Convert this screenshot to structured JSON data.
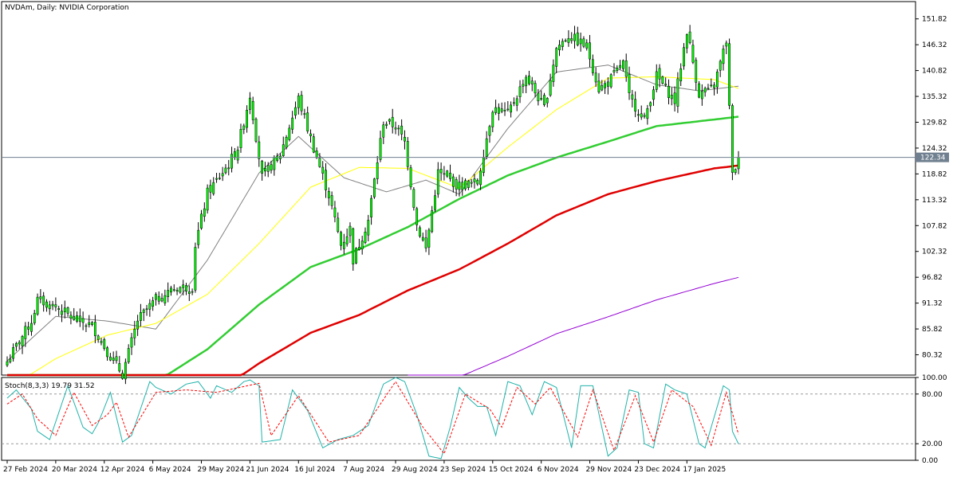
{
  "chart_data": [
    {
      "type": "candlestick",
      "title": "NVDAm, Daily:  NVIDIA Corporation",
      "ylim": [
        76.0,
        155.5
      ],
      "y_ticks": [
        "151.82",
        "146.32",
        "140.82",
        "135.32",
        "129.82",
        "124.32",
        "118.82",
        "113.32",
        "107.82",
        "102.32",
        "96.82",
        "91.32",
        "85.82",
        "80.32"
      ],
      "x_tick_labels": [
        "27 Feb 2024",
        "20 Mar 2024",
        "12 Apr 2024",
        "6 May 2024",
        "29 May 2024",
        "21 Jun 2024",
        "16 Jul 2024",
        "7 Aug 2024",
        "29 Aug 2024",
        "23 Sep 2024",
        "15 Oct 2024",
        "6 Nov 2024",
        "29 Nov 2024",
        "23 Dec 2024",
        "17 Jan 2025"
      ],
      "current_price": "122.34",
      "current_price_value": 122.34,
      "colors": {
        "up": "#00ff00",
        "down": "#00ff00",
        "wick": "#000000",
        "price_line": "#708090",
        "price_tag_bg": "#708090",
        "ma_gray": "#808080",
        "ma_yellow": "#ffff00",
        "ma_green": "#32cd32",
        "ma_red": "#e00000",
        "ma_purple": "#9400d3"
      },
      "anchors": [
        {
          "d": "2024-02-27",
          "c": 78.9
        },
        {
          "d": "2024-03-08",
          "c": 87.5
        },
        {
          "d": "2024-03-12",
          "c": 92.0
        },
        {
          "d": "2024-03-20",
          "c": 90.5
        },
        {
          "d": "2024-03-28",
          "c": 88.0
        },
        {
          "d": "2024-04-05",
          "c": 86.5
        },
        {
          "d": "2024-04-12",
          "c": 81.0
        },
        {
          "d": "2024-04-19",
          "c": 76.2
        },
        {
          "d": "2024-04-26",
          "c": 87.7
        },
        {
          "d": "2024-05-06",
          "c": 92.1
        },
        {
          "d": "2024-05-15",
          "c": 94.6
        },
        {
          "d": "2024-05-22",
          "c": 94.8
        },
        {
          "d": "2024-05-23",
          "c": 103.8
        },
        {
          "d": "2024-05-29",
          "c": 114.8
        },
        {
          "d": "2024-06-07",
          "c": 120.9
        },
        {
          "d": "2024-06-12",
          "c": 124.5
        },
        {
          "d": "2024-06-18",
          "c": 135.6
        },
        {
          "d": "2024-06-24",
          "c": 118.1
        },
        {
          "d": "2024-07-02",
          "c": 123.0
        },
        {
          "d": "2024-07-10",
          "c": 134.9
        },
        {
          "d": "2024-07-16",
          "c": 126.4
        },
        {
          "d": "2024-07-24",
          "c": 114.3
        },
        {
          "d": "2024-07-30",
          "c": 103.7
        },
        {
          "d": "2024-08-02",
          "c": 107.2
        },
        {
          "d": "2024-08-05",
          "c": 100.5
        },
        {
          "d": "2024-08-12",
          "c": 109.0
        },
        {
          "d": "2024-08-19",
          "c": 130.0
        },
        {
          "d": "2024-08-23",
          "c": 129.0
        },
        {
          "d": "2024-08-28",
          "c": 125.6
        },
        {
          "d": "2024-09-03",
          "c": 108.0
        },
        {
          "d": "2024-09-06",
          "c": 102.8
        },
        {
          "d": "2024-09-12",
          "c": 119.1
        },
        {
          "d": "2024-09-23",
          "c": 116.3
        },
        {
          "d": "2024-10-01",
          "c": 117.0
        },
        {
          "d": "2024-10-08",
          "c": 132.9
        },
        {
          "d": "2024-10-15",
          "c": 131.6
        },
        {
          "d": "2024-10-23",
          "c": 139.6
        },
        {
          "d": "2024-10-31",
          "c": 132.8
        },
        {
          "d": "2024-11-06",
          "c": 145.6
        },
        {
          "d": "2024-11-12",
          "c": 148.3
        },
        {
          "d": "2024-11-20",
          "c": 145.9
        },
        {
          "d": "2024-11-26",
          "c": 136.9
        },
        {
          "d": "2024-11-29",
          "c": 138.3
        },
        {
          "d": "2024-12-06",
          "c": 142.4
        },
        {
          "d": "2024-12-10",
          "c": 135.1
        },
        {
          "d": "2024-12-17",
          "c": 130.4
        },
        {
          "d": "2024-12-23",
          "c": 139.7
        },
        {
          "d": "2024-12-31",
          "c": 134.3
        },
        {
          "d": "2025-01-06",
          "c": 149.4
        },
        {
          "d": "2025-01-10",
          "c": 135.9
        },
        {
          "d": "2025-01-15",
          "c": 136.2
        },
        {
          "d": "2025-01-17",
          "c": 137.7
        },
        {
          "d": "2025-01-23",
          "c": 147.2
        },
        {
          "d": "2025-01-27",
          "c": 118.4
        },
        {
          "d": "2025-01-29",
          "c": 122.3
        }
      ],
      "moving_averages": [
        {
          "color": "#808080",
          "points": [
            {
              "d": "2024-02-27",
              "v": 79.0
            },
            {
              "d": "2024-03-20",
              "v": 88.5
            },
            {
              "d": "2024-04-12",
              "v": 87.5
            },
            {
              "d": "2024-05-06",
              "v": 85.8
            },
            {
              "d": "2024-05-29",
              "v": 100.5
            },
            {
              "d": "2024-06-21",
              "v": 119.0
            },
            {
              "d": "2024-07-10",
              "v": 126.8
            },
            {
              "d": "2024-07-31",
              "v": 118.0
            },
            {
              "d": "2024-08-20",
              "v": 115.0
            },
            {
              "d": "2024-09-06",
              "v": 117.5
            },
            {
              "d": "2024-09-23",
              "v": 114.5
            },
            {
              "d": "2024-10-15",
              "v": 128.5
            },
            {
              "d": "2024-11-06",
              "v": 140.5
            },
            {
              "d": "2024-11-29",
              "v": 142.0
            },
            {
              "d": "2024-12-23",
              "v": 137.8
            },
            {
              "d": "2025-01-10",
              "v": 136.5
            },
            {
              "d": "2025-01-29",
              "v": 137.5
            }
          ]
        },
        {
          "color": "#ffff00",
          "points": [
            {
              "d": "2024-02-27",
              "v": 73.0
            },
            {
              "d": "2024-03-20",
              "v": 79.5
            },
            {
              "d": "2024-04-12",
              "v": 84.5
            },
            {
              "d": "2024-05-06",
              "v": 87.0
            },
            {
              "d": "2024-05-29",
              "v": 93.2
            },
            {
              "d": "2024-06-21",
              "v": 104.0
            },
            {
              "d": "2024-07-16",
              "v": 116.0
            },
            {
              "d": "2024-08-07",
              "v": 120.2
            },
            {
              "d": "2024-08-29",
              "v": 120.0
            },
            {
              "d": "2024-09-23",
              "v": 115.8
            },
            {
              "d": "2024-10-15",
              "v": 124.5
            },
            {
              "d": "2024-11-06",
              "v": 132.5
            },
            {
              "d": "2024-11-29",
              "v": 139.2
            },
            {
              "d": "2024-12-23",
              "v": 139.5
            },
            {
              "d": "2025-01-17",
              "v": 138.9
            },
            {
              "d": "2025-01-29",
              "v": 137.0
            }
          ]
        },
        {
          "color": "#32cd32",
          "points": [
            {
              "d": "2024-02-27",
              "v": 63.0
            },
            {
              "d": "2024-03-20",
              "v": 67.5
            },
            {
              "d": "2024-04-12",
              "v": 71.5
            },
            {
              "d": "2024-05-06",
              "v": 74.5
            },
            {
              "d": "2024-05-29",
              "v": 81.5
            },
            {
              "d": "2024-06-21",
              "v": 91.0
            },
            {
              "d": "2024-07-16",
              "v": 99.0
            },
            {
              "d": "2024-08-07",
              "v": 102.8
            },
            {
              "d": "2024-08-29",
              "v": 107.5
            },
            {
              "d": "2024-09-23",
              "v": 113.5
            },
            {
              "d": "2024-10-15",
              "v": 118.5
            },
            {
              "d": "2024-11-06",
              "v": 122.3
            },
            {
              "d": "2024-11-29",
              "v": 125.7
            },
            {
              "d": "2024-12-23",
              "v": 129.0
            },
            {
              "d": "2025-01-17",
              "v": 130.4
            },
            {
              "d": "2025-01-29",
              "v": 131.0
            }
          ]
        },
        {
          "color": "#e00000",
          "points": [
            {
              "d": "2024-02-27",
              "v": 48.0
            },
            {
              "d": "2024-04-12",
              "v": 60.5
            },
            {
              "d": "2024-05-29",
              "v": 71.0
            },
            {
              "d": "2024-06-21",
              "v": 78.5
            },
            {
              "d": "2024-07-16",
              "v": 85.0
            },
            {
              "d": "2024-08-07",
              "v": 88.8
            },
            {
              "d": "2024-08-29",
              "v": 94.0
            },
            {
              "d": "2024-09-23",
              "v": 98.5
            },
            {
              "d": "2024-10-15",
              "v": 104.0
            },
            {
              "d": "2024-11-06",
              "v": 110.0
            },
            {
              "d": "2024-11-29",
              "v": 114.5
            },
            {
              "d": "2024-12-23",
              "v": 117.3
            },
            {
              "d": "2025-01-17",
              "v": 120.0
            },
            {
              "d": "2025-01-29",
              "v": 120.6
            }
          ]
        },
        {
          "color": "#9400d3",
          "points": [
            {
              "d": "2024-08-29",
              "v": 73.5
            },
            {
              "d": "2024-09-23",
              "v": 75.6
            },
            {
              "d": "2024-10-15",
              "v": 80.0
            },
            {
              "d": "2024-11-06",
              "v": 84.8
            },
            {
              "d": "2024-11-29",
              "v": 88.4
            },
            {
              "d": "2024-12-23",
              "v": 92.0
            },
            {
              "d": "2025-01-17",
              "v": 95.5
            },
            {
              "d": "2025-01-29",
              "v": 96.8
            }
          ]
        }
      ]
    },
    {
      "type": "line",
      "title": "Stoch(8,3,3) 19.79 31.52",
      "ylim": [
        0,
        100
      ],
      "y_ticks": [
        "100.00",
        "80.00",
        "20.00",
        "0.00"
      ],
      "levels": [
        80,
        20
      ],
      "main_color": "#20b2aa",
      "signal_color": "#ff0000",
      "main": [
        {
          "d": "2024-02-27",
          "v": 75
        },
        {
          "d": "2024-03-01",
          "v": 85
        },
        {
          "d": "2024-03-08",
          "v": 62
        },
        {
          "d": "2024-03-12",
          "v": 35
        },
        {
          "d": "2024-03-18",
          "v": 25
        },
        {
          "d": "2024-03-26",
          "v": 90
        },
        {
          "d": "2024-04-02",
          "v": 40
        },
        {
          "d": "2024-04-05",
          "v": 32
        },
        {
          "d": "2024-04-09",
          "v": 45
        },
        {
          "d": "2024-04-15",
          "v": 82
        },
        {
          "d": "2024-04-19",
          "v": 22
        },
        {
          "d": "2024-04-24",
          "v": 30
        },
        {
          "d": "2024-05-02",
          "v": 95
        },
        {
          "d": "2024-05-06",
          "v": 88
        },
        {
          "d": "2024-05-13",
          "v": 80
        },
        {
          "d": "2024-05-20",
          "v": 92
        },
        {
          "d": "2024-05-24",
          "v": 95
        },
        {
          "d": "2024-05-30",
          "v": 75
        },
        {
          "d": "2024-06-03",
          "v": 90
        },
        {
          "d": "2024-06-10",
          "v": 82
        },
        {
          "d": "2024-06-14",
          "v": 95
        },
        {
          "d": "2024-06-18",
          "v": 97
        },
        {
          "d": "2024-06-21",
          "v": 90
        },
        {
          "d": "2024-06-24",
          "v": 22
        },
        {
          "d": "2024-07-02",
          "v": 25
        },
        {
          "d": "2024-07-08",
          "v": 85
        },
        {
          "d": "2024-07-11",
          "v": 70
        },
        {
          "d": "2024-07-15",
          "v": 60
        },
        {
          "d": "2024-07-22",
          "v": 15
        },
        {
          "d": "2024-07-29",
          "v": 25
        },
        {
          "d": "2024-08-05",
          "v": 30
        },
        {
          "d": "2024-08-12",
          "v": 42
        },
        {
          "d": "2024-08-19",
          "v": 92
        },
        {
          "d": "2024-08-23",
          "v": 100
        },
        {
          "d": "2024-08-28",
          "v": 95
        },
        {
          "d": "2024-09-03",
          "v": 55
        },
        {
          "d": "2024-09-09",
          "v": 5
        },
        {
          "d": "2024-09-13",
          "v": 2
        },
        {
          "d": "2024-09-18",
          "v": 40
        },
        {
          "d": "2024-09-23",
          "v": 88
        },
        {
          "d": "2024-09-26",
          "v": 75
        },
        {
          "d": "2024-10-01",
          "v": 65
        },
        {
          "d": "2024-10-04",
          "v": 65
        },
        {
          "d": "2024-10-09",
          "v": 30
        },
        {
          "d": "2024-10-15",
          "v": 95
        },
        {
          "d": "2024-10-21",
          "v": 90
        },
        {
          "d": "2024-10-25",
          "v": 55
        },
        {
          "d": "2024-10-31",
          "v": 95
        },
        {
          "d": "2024-11-06",
          "v": 88
        },
        {
          "d": "2024-11-13",
          "v": 15
        },
        {
          "d": "2024-11-18",
          "v": 90
        },
        {
          "d": "2024-11-22",
          "v": 90
        },
        {
          "d": "2024-11-29",
          "v": 5
        },
        {
          "d": "2024-12-04",
          "v": 15
        },
        {
          "d": "2024-12-10",
          "v": 85
        },
        {
          "d": "2024-12-13",
          "v": 82
        },
        {
          "d": "2024-12-17",
          "v": 20
        },
        {
          "d": "2024-12-20",
          "v": 15
        },
        {
          "d": "2024-12-26",
          "v": 92
        },
        {
          "d": "2024-12-31",
          "v": 85
        },
        {
          "d": "2025-01-06",
          "v": 80
        },
        {
          "d": "2025-01-10",
          "v": 20
        },
        {
          "d": "2025-01-14",
          "v": 15
        },
        {
          "d": "2025-01-22",
          "v": 90
        },
        {
          "d": "2025-01-24",
          "v": 85
        },
        {
          "d": "2025-01-27",
          "v": 35
        },
        {
          "d": "2025-01-29",
          "v": 19.79
        }
      ],
      "signal": [
        {
          "d": "2024-02-27",
          "v": 68
        },
        {
          "d": "2024-03-05",
          "v": 80
        },
        {
          "d": "2024-03-12",
          "v": 50
        },
        {
          "d": "2024-03-20",
          "v": 30
        },
        {
          "d": "2024-03-28",
          "v": 82
        },
        {
          "d": "2024-04-05",
          "v": 42
        },
        {
          "d": "2024-04-12",
          "v": 55
        },
        {
          "d": "2024-04-17",
          "v": 70
        },
        {
          "d": "2024-04-23",
          "v": 28
        },
        {
          "d": "2024-05-06",
          "v": 82
        },
        {
          "d": "2024-05-20",
          "v": 85
        },
        {
          "d": "2024-06-03",
          "v": 82
        },
        {
          "d": "2024-06-21",
          "v": 93
        },
        {
          "d": "2024-06-27",
          "v": 30
        },
        {
          "d": "2024-07-10",
          "v": 78
        },
        {
          "d": "2024-07-24",
          "v": 22
        },
        {
          "d": "2024-08-07",
          "v": 30
        },
        {
          "d": "2024-08-23",
          "v": 95
        },
        {
          "d": "2024-09-05",
          "v": 40
        },
        {
          "d": "2024-09-16",
          "v": 8
        },
        {
          "d": "2024-09-25",
          "v": 80
        },
        {
          "d": "2024-10-07",
          "v": 62
        },
        {
          "d": "2024-10-11",
          "v": 40
        },
        {
          "d": "2024-10-18",
          "v": 88
        },
        {
          "d": "2024-10-28",
          "v": 68
        },
        {
          "d": "2024-11-04",
          "v": 88
        },
        {
          "d": "2024-11-15",
          "v": 28
        },
        {
          "d": "2024-11-22",
          "v": 85
        },
        {
          "d": "2024-12-03",
          "v": 12
        },
        {
          "d": "2024-12-12",
          "v": 78
        },
        {
          "d": "2024-12-20",
          "v": 22
        },
        {
          "d": "2024-12-30",
          "v": 85
        },
        {
          "d": "2025-01-08",
          "v": 65
        },
        {
          "d": "2025-01-16",
          "v": 18
        },
        {
          "d": "2025-01-23",
          "v": 82
        },
        {
          "d": "2025-01-29",
          "v": 31.52
        }
      ]
    }
  ]
}
